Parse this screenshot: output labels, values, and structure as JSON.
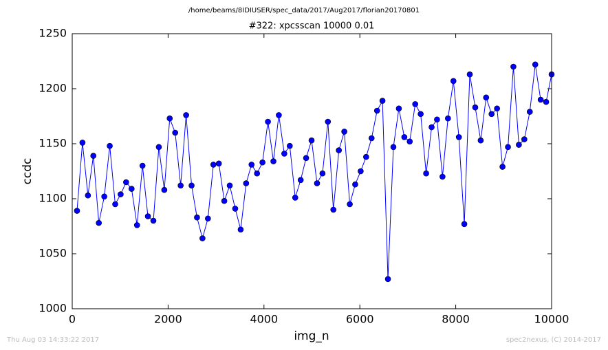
{
  "chart_data": {
    "type": "line",
    "suptitle": "/home/beams/8IDIUSER/spec_data/2017/Aug2017/florian20170801",
    "title": "#322: xpcsscan 10000 0.01",
    "x_label": "img_n",
    "y_label": "ccdc",
    "footer_left": "Thu Aug 03 14:33:22 2017",
    "footer_right": "spec2nexus, (C) 2014-2017",
    "x": [
      100,
      214,
      328,
      441,
      555,
      669,
      783,
      897,
      1010,
      1124,
      1238,
      1352,
      1466,
      1579,
      1693,
      1807,
      1921,
      2034,
      2148,
      2262,
      2376,
      2490,
      2603,
      2717,
      2831,
      2945,
      3059,
      3172,
      3286,
      3400,
      3514,
      3628,
      3741,
      3855,
      3969,
      4083,
      4197,
      4310,
      4424,
      4538,
      4652,
      4766,
      4879,
      4993,
      5107,
      5221,
      5334,
      5448,
      5562,
      5676,
      5790,
      5903,
      6017,
      6131,
      6245,
      6359,
      6472,
      6586,
      6700,
      6814,
      6928,
      7041,
      7155,
      7269,
      7383,
      7497,
      7610,
      7724,
      7838,
      7952,
      8066,
      8179,
      8293,
      8407,
      8521,
      8634,
      8748,
      8862,
      8976,
      9090,
      9203,
      9317,
      9431,
      9545,
      9659,
      9772,
      9886,
      10000
    ],
    "series": [
      {
        "color": "#0000ff",
        "values": [
          1089,
          1151,
          1103,
          1139,
          1078,
          1102,
          1148,
          1095,
          1104,
          1115,
          1109,
          1076,
          1130,
          1084,
          1080,
          1147,
          1108,
          1173,
          1160,
          1112,
          1176,
          1112,
          1083,
          1064,
          1082,
          1131,
          1132,
          1098,
          1112,
          1091,
          1072,
          1114,
          1131,
          1123,
          1133,
          1170,
          1134,
          1176,
          1141,
          1148,
          1101,
          1117,
          1137,
          1153,
          1114,
          1123,
          1170,
          1090,
          1144,
          1161,
          1095,
          1113,
          1125,
          1138,
          1155,
          1180,
          1189,
          1027,
          1147,
          1182,
          1156,
          1152,
          1186,
          1177,
          1123,
          1165,
          1172,
          1120,
          1173,
          1207,
          1156,
          1077,
          1213,
          1183,
          1153,
          1192,
          1177,
          1182,
          1129,
          1147,
          1220,
          1149,
          1154,
          1179,
          1222,
          1190,
          1188,
          1213
        ]
      }
    ],
    "xlim": [
      0,
      10000
    ],
    "ylim": [
      1000,
      1250
    ],
    "xticks": [
      0,
      2000,
      4000,
      6000,
      8000,
      10000
    ],
    "yticks": [
      1000,
      1050,
      1100,
      1150,
      1200,
      1250
    ],
    "grid": false
  }
}
